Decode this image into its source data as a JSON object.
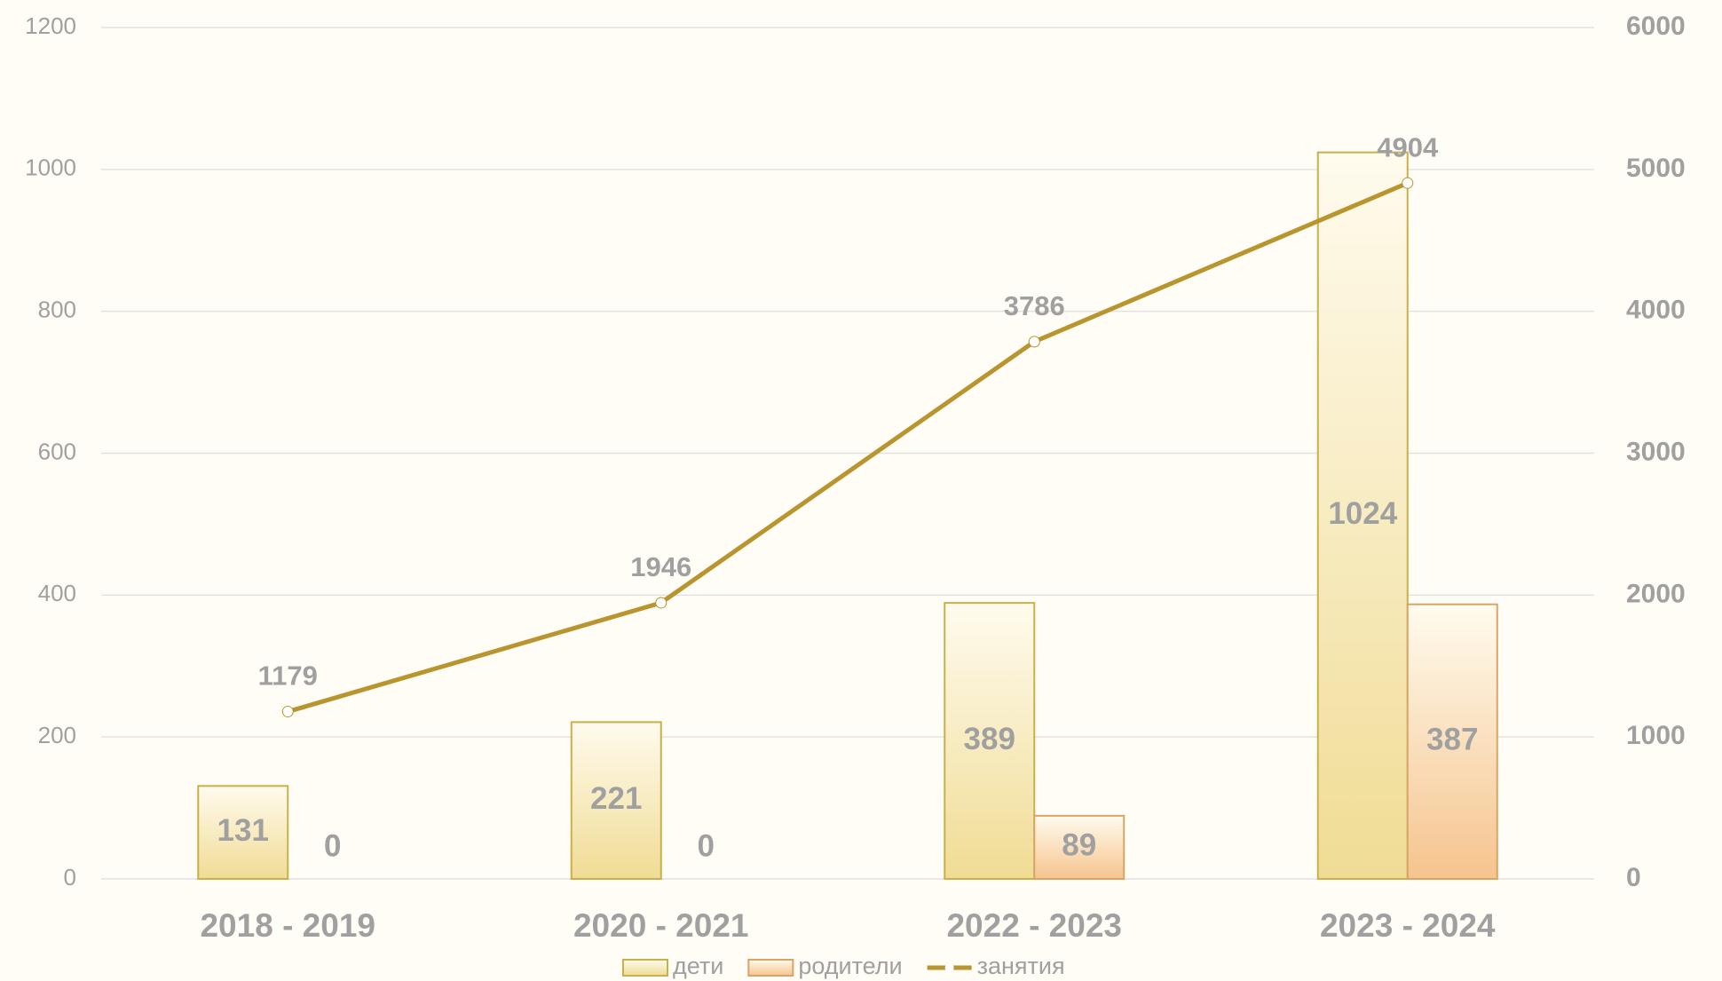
{
  "chart_data": {
    "type": "bar",
    "categories": [
      "2018 - 2019",
      "2020 - 2021",
      "2022 - 2023",
      "2023 - 2024"
    ],
    "series": [
      {
        "name": "дети",
        "color": "#f0dc94",
        "values": [
          131,
          221,
          389,
          1024
        ]
      },
      {
        "name": "родители",
        "color": "#f6c48e",
        "values": [
          0,
          0,
          89,
          387
        ]
      },
      {
        "name": "занятия",
        "type": "line",
        "axis": "y2",
        "color": "#b8952e",
        "values": [
          1179,
          1946,
          3786,
          4904
        ]
      }
    ],
    "ylim": [
      0,
      1200
    ],
    "yticks": [
      0,
      200,
      400,
      600,
      800,
      1000,
      1200
    ],
    "y2lim": [
      0,
      6000
    ],
    "y2ticks": [
      0,
      1000,
      2000,
      3000,
      4000,
      5000,
      6000
    ],
    "grid": true,
    "legend": "bottom"
  }
}
